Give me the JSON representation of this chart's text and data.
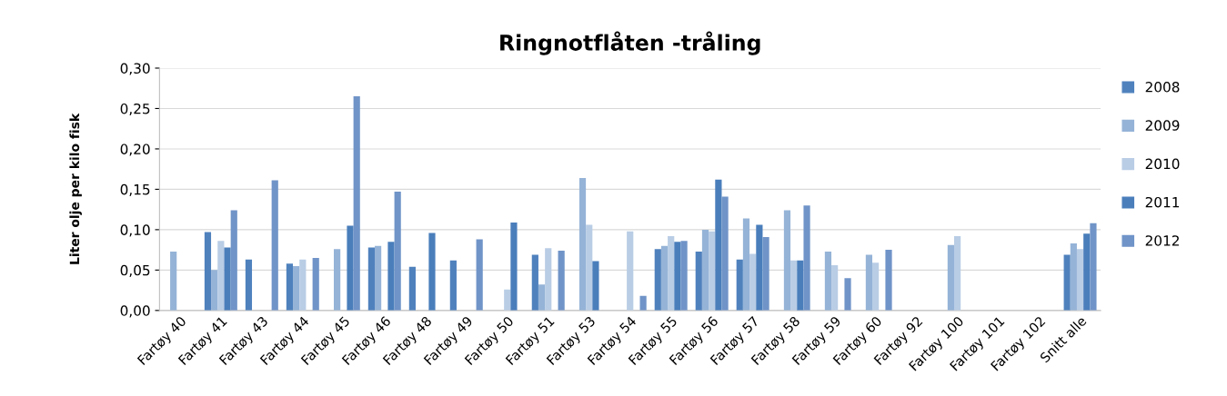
{
  "chart_data": {
    "type": "bar",
    "title": "Ringnotflåten -tråling",
    "ylabel": "Liter olje per kilo fisk",
    "categories": [
      "Fartøy 40",
      "Fartøy 41",
      "Fartøy 43",
      "Fartøy 44",
      "Fartøy 45",
      "Fartøy 46",
      "Fartøy 48",
      "Fartøy 49",
      "Fartøy 50",
      "Fartøy 51",
      "Fartøy 53",
      "Fartøy 54",
      "Fartøy 55",
      "Fartøy 56",
      "Fartøy 57",
      "Fartøy 58",
      "Fartøy 59",
      "Fartøy 60",
      "Fartøy 92",
      "Fartøy 100",
      "Fartøy 101",
      "Fartøy 102",
      "Snitt alle"
    ],
    "series": [
      {
        "name": "2008",
        "color": "#4f81bd",
        "values": [
          null,
          0.097,
          0.063,
          0.058,
          null,
          0.078,
          0.054,
          0.062,
          null,
          0.069,
          null,
          null,
          0.076,
          0.073,
          0.063,
          null,
          null,
          null,
          null,
          null,
          null,
          null,
          0.069
        ]
      },
      {
        "name": "2009",
        "color": "#95b3d7",
        "values": [
          0.073,
          0.05,
          null,
          0.055,
          0.076,
          0.08,
          null,
          null,
          null,
          0.032,
          0.164,
          null,
          0.08,
          0.1,
          0.114,
          0.124,
          0.073,
          0.069,
          null,
          0.081,
          null,
          null,
          0.083
        ]
      },
      {
        "name": "2010",
        "color": "#b9cde5",
        "values": [
          null,
          0.086,
          null,
          0.063,
          null,
          null,
          null,
          null,
          0.026,
          0.077,
          0.106,
          0.098,
          0.092,
          0.098,
          0.07,
          0.062,
          0.056,
          0.059,
          null,
          0.092,
          null,
          null,
          0.076
        ]
      },
      {
        "name": "2011",
        "color": "#4a7ebb",
        "values": [
          null,
          0.078,
          null,
          null,
          0.105,
          0.085,
          0.096,
          null,
          0.109,
          null,
          0.061,
          null,
          0.085,
          0.162,
          0.106,
          0.062,
          null,
          null,
          null,
          null,
          null,
          null,
          0.095
        ]
      },
      {
        "name": "2012",
        "color": "#7094c8",
        "values": [
          null,
          0.124,
          0.161,
          0.065,
          0.265,
          0.147,
          null,
          0.088,
          null,
          0.074,
          null,
          0.018,
          0.086,
          0.141,
          0.091,
          0.13,
          0.04,
          0.075,
          null,
          null,
          null,
          null,
          0.108
        ]
      }
    ],
    "ylim": [
      0,
      0.3
    ],
    "yticks": [
      {
        "value": 0,
        "label": "0,00"
      },
      {
        "value": 0.05,
        "label": "0,05"
      },
      {
        "value": 0.1,
        "label": "0,10"
      },
      {
        "value": 0.15,
        "label": "0,15"
      },
      {
        "value": 0.2,
        "label": "0,20"
      },
      {
        "value": 0.25,
        "label": "0,25"
      },
      {
        "value": 0.3,
        "label": "0,30"
      }
    ],
    "grid": "y",
    "legend": "right"
  }
}
